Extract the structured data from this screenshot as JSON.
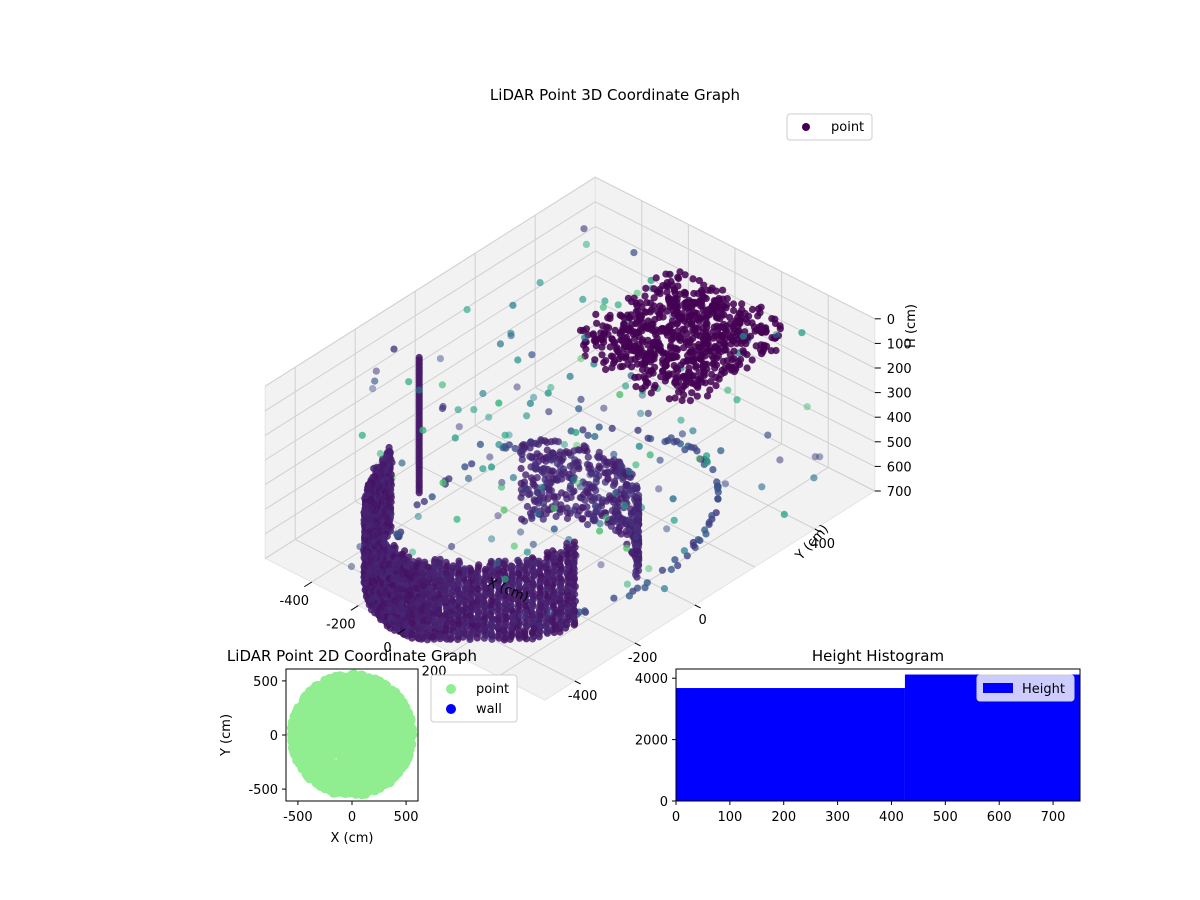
{
  "colors": {
    "point_2d": "#90EE90",
    "wall_2d": "#0000FF",
    "hist_bar": "#0000FF",
    "legend_marker_3d": "#440154",
    "pane": "#f2f2f2",
    "grid": "#d0d0d0"
  },
  "chart_data": [
    {
      "type": "scatter",
      "projection": "3d",
      "title": "LiDAR Point 3D Coordinate Graph",
      "xlabel": "X (cm)",
      "ylabel": "Y (cm)",
      "zlabel": "H (cm)",
      "xlim": [
        -600,
        600
      ],
      "ylim": [
        -500,
        600
      ],
      "zlim": [
        700,
        0
      ],
      "zaxis_inverted": true,
      "xticks": [
        "-400",
        "-200",
        "0",
        "200",
        "400"
      ],
      "yticks": [
        "-400",
        "-200",
        "0",
        "400"
      ],
      "zticks": [
        "0",
        "100",
        "200",
        "300",
        "400",
        "500",
        "600",
        "700"
      ],
      "colormap": "viridis",
      "legend": {
        "placement": "upper right",
        "entries": [
          "point"
        ]
      },
      "grid": true,
      "structures": {
        "arc_wall": {
          "center": [
            0,
            -100
          ],
          "radius": 420,
          "angle_range_deg": [
            200,
            340
          ],
          "h_range": [
            350,
            700
          ],
          "step_deg": 2.5
        },
        "ceiling_cluster": {
          "x_range": [
            -100,
            380
          ],
          "y_range": [
            150,
            480
          ],
          "h_range": [
            0,
            150
          ],
          "count": 700
        },
        "floor_ring": {
          "radius": 430,
          "h": 690,
          "count": 120
        },
        "scatter_points": {
          "count": 180,
          "x_range": [
            -560,
            560
          ],
          "y_range": [
            -480,
            560
          ],
          "h_range": [
            0,
            700
          ]
        }
      }
    },
    {
      "type": "scatter",
      "title": "LiDAR Point 2D Coordinate Graph",
      "xlabel": "X (cm)",
      "ylabel": "Y (cm)",
      "xlim": [
        -610,
        610
      ],
      "ylim": [
        -610,
        610
      ],
      "xticks": [
        -500,
        0,
        500
      ],
      "yticks": [
        -500,
        0,
        500
      ],
      "legend": {
        "placement": "outside right",
        "entries": [
          "point",
          "wall"
        ]
      },
      "series": [
        {
          "name": "point",
          "disk": {
            "center": [
              0,
              0
            ],
            "radius": 560,
            "count": 2600,
            "point_radius_px": 5
          },
          "gaps": [
            {
              "x": [
                -430,
                160
              ],
              "y": [
                -260,
                -200
              ]
            },
            {
              "x": [
                -560,
                -430
              ],
              "y": [
                420,
                560
              ]
            }
          ]
        },
        {
          "name": "wall",
          "values": []
        }
      ]
    },
    {
      "type": "bar",
      "subtype": "histogram",
      "title": "Height Histogram",
      "xlim": [
        0,
        750
      ],
      "ylim": [
        0,
        4300
      ],
      "xticks": [
        0,
        100,
        200,
        300,
        400,
        500,
        600,
        700
      ],
      "yticks": [
        0,
        2000,
        4000
      ],
      "legend": {
        "placement": "upper right",
        "entries": [
          "Height"
        ]
      },
      "series": [
        {
          "name": "Height",
          "bins": [
            {
              "x0": 0,
              "x1": 425,
              "value": 3680
            },
            {
              "x0": 425,
              "x1": 750,
              "value": 4120
            }
          ]
        }
      ]
    }
  ]
}
